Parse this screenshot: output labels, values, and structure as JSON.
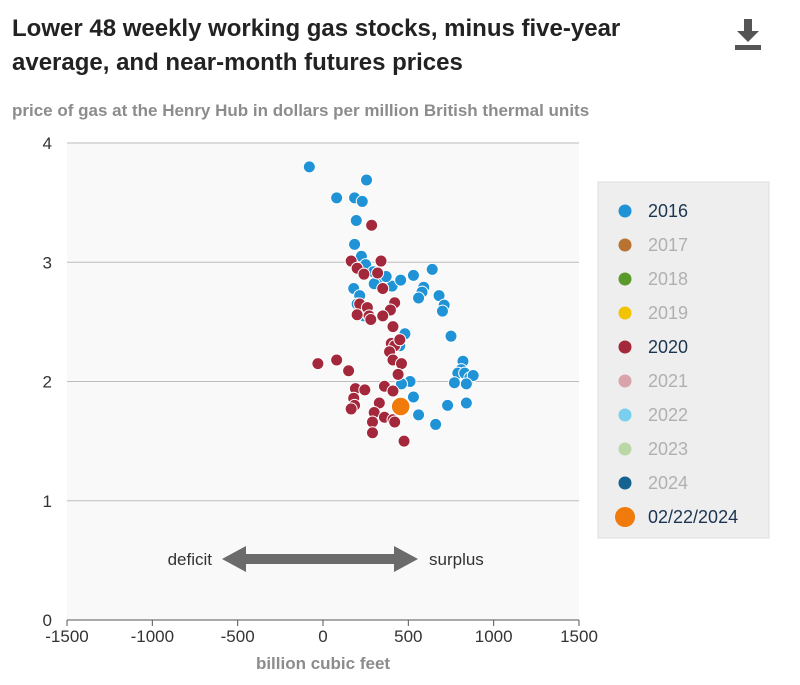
{
  "title": "Lower 48 weekly working gas stocks, minus five-year average, and near-month futures prices",
  "subtitle": "price of gas at the Henry Hub in dollars per million British thermal units",
  "download_icon": "download-icon",
  "colors": {
    "2016": "#1f93d6",
    "2017": "#b87333",
    "2018": "#5a9a2a",
    "2019": "#f2c300",
    "2020": "#a4283b",
    "2021": "#d9a3ab",
    "2022": "#79d0ee",
    "2023": "#b9d8a6",
    "2024": "#14628f",
    "highlight": "#f07a0a",
    "legend_active_text": "#1b3550",
    "legend_inactive_text": "#b0b0b0",
    "legend_bg": "#eeeeee",
    "plot_bg": "#f9f9f9",
    "grid": "#bdbdbd"
  },
  "annotations": {
    "deficit": "deficit",
    "surplus": "surplus"
  },
  "chart_data": {
    "type": "scatter",
    "title": "Lower 48 weekly working gas stocks, minus five-year average, and near-month futures prices",
    "ylabel": "price of gas at the Henry Hub in dollars per million British thermal units",
    "xlabel": "billion cubic feet",
    "xlim": [
      -1500,
      1500
    ],
    "ylim": [
      0,
      4
    ],
    "xticks": [
      -1500,
      -1000,
      -500,
      0,
      500,
      1000,
      1500
    ],
    "yticks": [
      0,
      1,
      2,
      3,
      4
    ],
    "grid": "horizontal",
    "legend_position": "right",
    "legend": [
      {
        "name": "2016",
        "active": true
      },
      {
        "name": "2017",
        "active": false
      },
      {
        "name": "2018",
        "active": false
      },
      {
        "name": "2019",
        "active": false
      },
      {
        "name": "2020",
        "active": true
      },
      {
        "name": "2021",
        "active": false
      },
      {
        "name": "2022",
        "active": false
      },
      {
        "name": "2023",
        "active": false
      },
      {
        "name": "2024",
        "active": false
      },
      {
        "name": "02/22/2024",
        "active": true
      }
    ],
    "series": [
      {
        "name": "2016",
        "points": [
          [
            -80,
            3.8
          ],
          [
            80,
            3.54
          ],
          [
            185,
            3.54
          ],
          [
            230,
            3.51
          ],
          [
            255,
            3.69
          ],
          [
            195,
            3.35
          ],
          [
            185,
            3.15
          ],
          [
            225,
            3.05
          ],
          [
            250,
            2.98
          ],
          [
            295,
            2.92
          ],
          [
            345,
            2.85
          ],
          [
            405,
            2.8
          ],
          [
            180,
            2.78
          ],
          [
            215,
            2.72
          ],
          [
            200,
            2.65
          ],
          [
            215,
            2.58
          ],
          [
            240,
            2.55
          ],
          [
            300,
            2.82
          ],
          [
            370,
            2.88
          ],
          [
            455,
            2.85
          ],
          [
            530,
            2.89
          ],
          [
            640,
            2.94
          ],
          [
            590,
            2.79
          ],
          [
            580,
            2.75
          ],
          [
            560,
            2.7
          ],
          [
            680,
            2.72
          ],
          [
            710,
            2.64
          ],
          [
            700,
            2.59
          ],
          [
            480,
            2.4
          ],
          [
            450,
            2.3
          ],
          [
            460,
            2.15
          ],
          [
            750,
            2.38
          ],
          [
            820,
            2.17
          ],
          [
            810,
            2.1
          ],
          [
            790,
            2.07
          ],
          [
            830,
            2.07
          ],
          [
            860,
            2.03
          ],
          [
            880,
            2.05
          ],
          [
            770,
            1.99
          ],
          [
            840,
            1.98
          ],
          [
            510,
            2.0
          ],
          [
            460,
            1.98
          ],
          [
            530,
            1.87
          ],
          [
            560,
            1.72
          ],
          [
            660,
            1.64
          ],
          [
            730,
            1.8
          ],
          [
            840,
            1.82
          ]
        ]
      },
      {
        "name": "2020",
        "points": [
          [
            285,
            3.31
          ],
          [
            165,
            3.01
          ],
          [
            340,
            3.01
          ],
          [
            200,
            2.95
          ],
          [
            240,
            2.9
          ],
          [
            320,
            2.91
          ],
          [
            350,
            2.78
          ],
          [
            215,
            2.65
          ],
          [
            420,
            2.66
          ],
          [
            260,
            2.62
          ],
          [
            270,
            2.55
          ],
          [
            280,
            2.52
          ],
          [
            200,
            2.56
          ],
          [
            395,
            2.6
          ],
          [
            350,
            2.55
          ],
          [
            410,
            2.46
          ],
          [
            400,
            2.32
          ],
          [
            420,
            2.3
          ],
          [
            450,
            2.35
          ],
          [
            390,
            2.25
          ],
          [
            410,
            2.18
          ],
          [
            460,
            2.15
          ],
          [
            80,
            2.18
          ],
          [
            150,
            2.09
          ],
          [
            -30,
            2.15
          ],
          [
            440,
            2.06
          ],
          [
            190,
            1.94
          ],
          [
            245,
            1.93
          ],
          [
            360,
            1.96
          ],
          [
            410,
            1.92
          ],
          [
            180,
            1.86
          ],
          [
            185,
            1.8
          ],
          [
            165,
            1.77
          ],
          [
            330,
            1.82
          ],
          [
            300,
            1.74
          ],
          [
            360,
            1.7
          ],
          [
            410,
            1.68
          ],
          [
            420,
            1.66
          ],
          [
            290,
            1.66
          ],
          [
            290,
            1.57
          ],
          [
            475,
            1.5
          ]
        ]
      },
      {
        "name": "02/22/2024",
        "points": [
          [
            455,
            1.79
          ]
        ]
      }
    ]
  }
}
